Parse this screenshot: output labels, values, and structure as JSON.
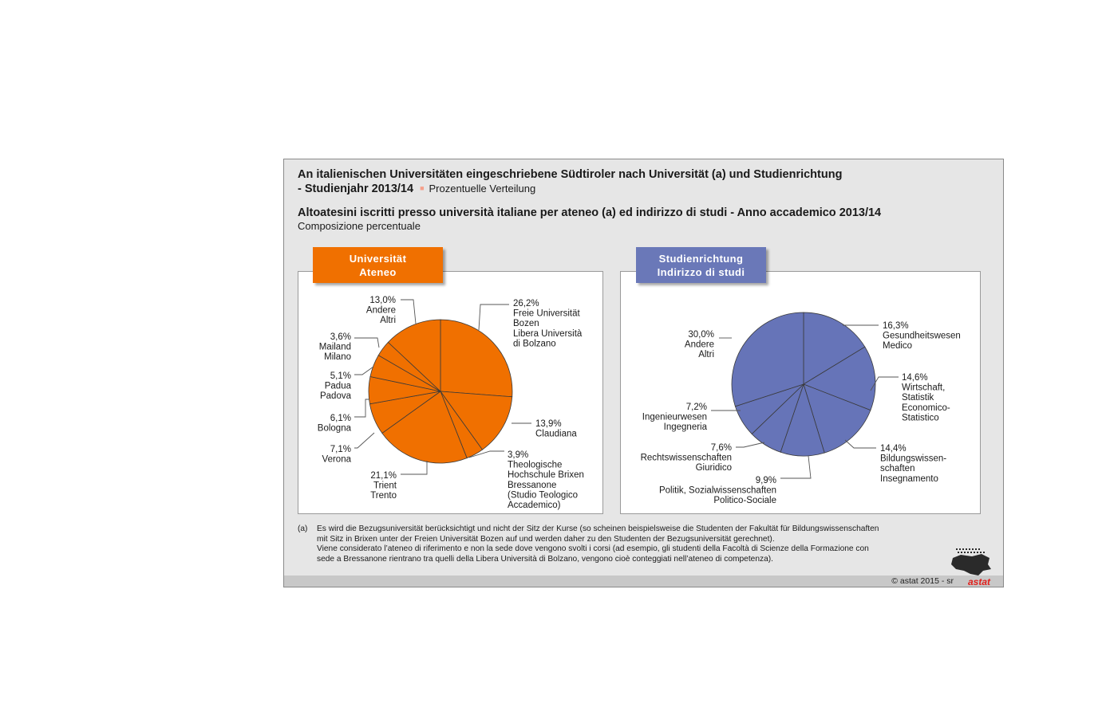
{
  "title_de": "An italienischen Universitäten eingeschriebene Südtiroler nach Universität (a) und Studienrichtung",
  "title_de_line2": "- Studienjahr 2013/14",
  "subtitle_de": "Prozentuelle Verteilung",
  "title_it": "Altoatesini iscritti presso università italiane per ateneo (a) ed indirizzo di studi - Anno accademico 2013/14",
  "subtitle_it": "Composizione percentuale",
  "colors": {
    "orange": "#f07000",
    "blue": "#6674b8",
    "tab_blue": "#6a78b8"
  },
  "tabs": {
    "left": [
      "Universität",
      "Ateneo"
    ],
    "right": [
      "Studienrichtung",
      "Indirizzo di studi"
    ]
  },
  "chart_data": [
    {
      "type": "pie",
      "title": "Universität / Ateneo",
      "slices": [
        {
          "value": 26.2,
          "display": "26,2%",
          "labels": [
            "Freie Universität",
            "Bozen",
            "Libera Università",
            "di Bolzano"
          ]
        },
        {
          "value": 13.9,
          "display": "13,9%",
          "labels": [
            "Claudiana"
          ]
        },
        {
          "value": 3.9,
          "display": "3,9%",
          "labels": [
            "Theologische",
            "Hochschule Brixen",
            "Bressanone",
            "(Studio Teologico",
            "Accademico)"
          ]
        },
        {
          "value": 21.1,
          "display": "21,1%",
          "labels": [
            "Trient",
            "Trento"
          ]
        },
        {
          "value": 7.1,
          "display": "7,1%",
          "labels": [
            "Verona"
          ]
        },
        {
          "value": 6.1,
          "display": "6,1%",
          "labels": [
            "Bologna"
          ]
        },
        {
          "value": 5.1,
          "display": "5,1%",
          "labels": [
            "Padua",
            "Padova"
          ]
        },
        {
          "value": 3.6,
          "display": "3,6%",
          "labels": [
            "Mailand",
            "Milano"
          ]
        },
        {
          "value": 13.0,
          "display": "13,0%",
          "labels": [
            "Andere",
            "Altri"
          ]
        }
      ]
    },
    {
      "type": "pie",
      "title": "Studienrichtung / Indirizzo di studi",
      "slices": [
        {
          "value": 16.3,
          "display": "16,3%",
          "labels": [
            "Gesundheitswesen",
            "Medico"
          ]
        },
        {
          "value": 14.6,
          "display": "14,6%",
          "labels": [
            "Wirtschaft,",
            "Statistik",
            "Economico-",
            "Statistico"
          ]
        },
        {
          "value": 14.4,
          "display": "14,4%",
          "labels": [
            "Bildungswissen-",
            "schaften",
            "Insegnamento"
          ]
        },
        {
          "value": 9.9,
          "display": "9,9%",
          "labels": [
            "Politik, Sozialwissenschaften",
            "Politico-Sociale"
          ]
        },
        {
          "value": 7.6,
          "display": "7,6%",
          "labels": [
            "Rechtswissenschaften",
            "Giuridico"
          ]
        },
        {
          "value": 7.2,
          "display": "7,2%",
          "labels": [
            "Ingenieurwesen",
            "Ingegneria"
          ]
        },
        {
          "value": 30.0,
          "display": "30,0%",
          "labels": [
            "Andere",
            "Altri"
          ]
        }
      ]
    }
  ],
  "note_marker": "(a)",
  "notes": [
    "Es wird die Bezugsuniversität berücksichtigt und nicht der Sitz der Kurse (so scheinen beispielsweise die Studenten der Fakultät für Bildungswissenschaften",
    "mit Sitz in Brixen unter der Freien Universität Bozen auf und werden daher zu den Studenten der Bezugsuniversität gerechnet).",
    "Viene considerato l’ateneo di riferimento e non la sede dove vengono svolti i corsi (ad esempio, gli studenti della Facoltà di Scienze della Formazione con",
    "sede a Bressanone rientrano tra quelli della Libera Università di Bolzano, vengono cioè conteggiati nell’ateneo di competenza)."
  ],
  "copyright": "© astat 2015 - sr",
  "logo_text": "astat"
}
